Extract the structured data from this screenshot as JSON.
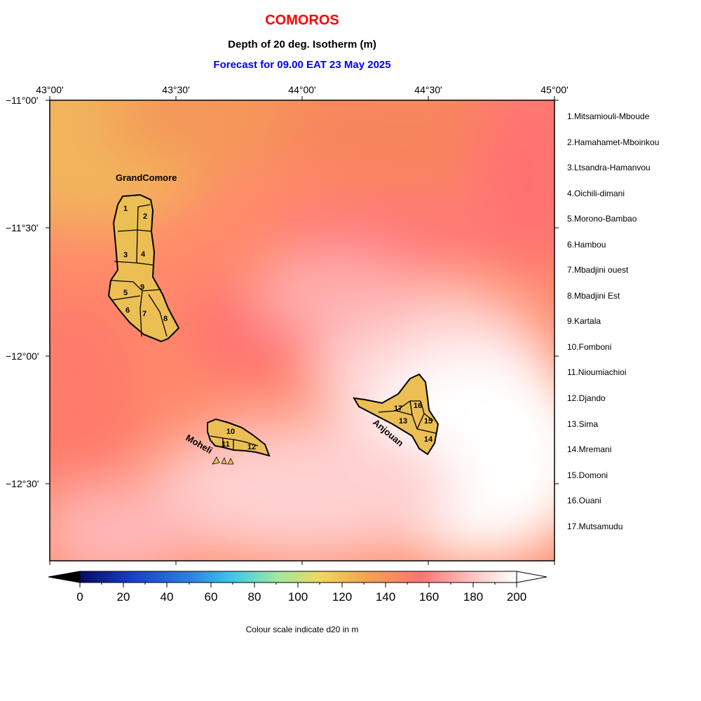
{
  "title": "COMOROS",
  "subtitle": "Depth of 20 deg. Isotherm (m)",
  "forecast": "Forecast for  09.00 EAT 23 May 2025",
  "lon_ticks": [
    "43°00'",
    "43°30'",
    "44°00'",
    "44°30'",
    "45°00'"
  ],
  "lat_ticks": [
    "−11°00'",
    "−11°30'",
    "−12°00'",
    "−12°30'"
  ],
  "islands": {
    "grand_comore": "GrandComore",
    "moheli": "Moheli",
    "anjouan": "Anjouan"
  },
  "district_numbers": [
    "1",
    "2",
    "3",
    "4",
    "5",
    "6",
    "7",
    "8",
    "9",
    "10",
    "11",
    "12",
    "13",
    "14",
    "15",
    "16",
    "17"
  ],
  "legend": [
    "1.Mitsamiouli-Mboude",
    "2.Hamahamet-Mboinkou",
    "3.Ltsandra-Hamanvou",
    "4.Oichili-dimani",
    "5.Morono-Bambao",
    "6.Hambou",
    "7.Mbadjini ouest",
    "8.Mbadjini Est",
    "9.Kartala",
    "10.Fomboni",
    "11.Nioumiachioi",
    "12.Djando",
    "13.Sima",
    "14.Mremani",
    "15.Domoni",
    "16.Ouani",
    "17.Mutsamudu"
  ],
  "colorbar": {
    "ticks": [
      "0",
      "20",
      "40",
      "60",
      "80",
      "100",
      "120",
      "140",
      "160",
      "180",
      "200"
    ],
    "caption": "Colour scale indicate d20 in m",
    "colors": [
      "#0a0a60",
      "#1a3fc8",
      "#3aa8e8",
      "#8ee8a8",
      "#f0d060",
      "#f2a050",
      "#ff7070",
      "#ffc8c8",
      "#ffffff"
    ]
  },
  "colors": {
    "land": "#ecbf55",
    "title": "#ff0000",
    "forecast": "#0000ff"
  }
}
